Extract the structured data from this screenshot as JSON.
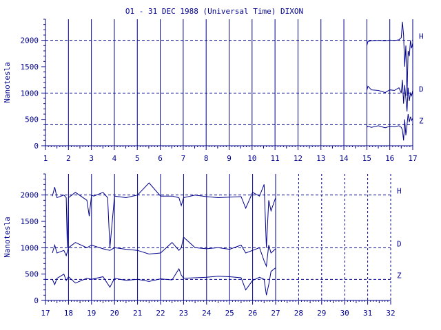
{
  "chart_data": [
    {
      "type": "line",
      "title": "O1 - 31 DEC 1988 (Universal Time) DIXON",
      "ylabel": "Nanotesla",
      "xlabel": "",
      "xlim": [
        1,
        17
      ],
      "ylim": [
        0,
        2400
      ],
      "x_ticks": [
        "1",
        "2",
        "3",
        "4",
        "5",
        "6",
        "7",
        "8",
        "9",
        "10",
        "11",
        "12",
        "13",
        "14",
        "15",
        "16",
        "17"
      ],
      "y_ticks": [
        "0",
        "500",
        "1000",
        "1500",
        "2000"
      ],
      "y_tick_values": [
        0,
        500,
        1000,
        1500,
        2000
      ],
      "data_start_day": 15,
      "grid": true,
      "reference_lines": [
        {
          "label": "H",
          "value": 2000
        },
        {
          "label": "D",
          "value": 1000
        },
        {
          "label": "Z",
          "value": 400
        }
      ],
      "series": [
        {
          "name": "H",
          "x": [
            15.0,
            15.05,
            15.2,
            15.5,
            15.8,
            16.0,
            16.2,
            16.4,
            16.5,
            16.55,
            16.6,
            16.65,
            16.7,
            16.75,
            16.8,
            16.85,
            16.9,
            16.95,
            17.0
          ],
          "values": [
            1900,
            1980,
            1990,
            2000,
            1990,
            2005,
            1995,
            2010,
            2050,
            2350,
            2100,
            1500,
            1900,
            950,
            1800,
            1700,
            2000,
            1850,
            1950
          ]
        },
        {
          "name": "D",
          "x": [
            15.0,
            15.05,
            15.2,
            15.5,
            15.8,
            16.0,
            16.2,
            16.4,
            16.5,
            16.55,
            16.6,
            16.65,
            16.7,
            16.75,
            16.8,
            16.85,
            16.9,
            16.95,
            17.0
          ],
          "values": [
            1050,
            1130,
            1060,
            1050,
            1010,
            1060,
            1050,
            1100,
            1000,
            1250,
            800,
            1150,
            900,
            650,
            1100,
            850,
            1000,
            950,
            1050
          ]
        },
        {
          "name": "Z",
          "x": [
            15.0,
            15.05,
            15.2,
            15.5,
            15.8,
            16.0,
            16.2,
            16.4,
            16.5,
            16.55,
            16.6,
            16.65,
            16.7,
            16.75,
            16.8,
            16.85,
            16.9,
            16.95,
            17.0
          ],
          "values": [
            350,
            370,
            350,
            380,
            340,
            370,
            360,
            380,
            350,
            300,
            100,
            500,
            200,
            400,
            600,
            450,
            550,
            480,
            520
          ]
        }
      ]
    },
    {
      "type": "line",
      "title": "",
      "ylabel": "Nanotesla",
      "xlabel": "",
      "xlim": [
        17,
        32
      ],
      "ylim": [
        0,
        2400
      ],
      "x_ticks": [
        "17",
        "18",
        "19",
        "20",
        "21",
        "22",
        "23",
        "24",
        "25",
        "26",
        "27",
        "28",
        "29",
        "30",
        "31",
        "32"
      ],
      "y_ticks": [
        "0",
        "500",
        "1000",
        "1500",
        "2000"
      ],
      "y_tick_values": [
        0,
        500,
        1000,
        1500,
        2000
      ],
      "data_end_day": 27,
      "grid": true,
      "reference_lines": [
        {
          "label": "H",
          "value": 2000
        },
        {
          "label": "D",
          "value": 1000
        },
        {
          "label": "Z",
          "value": 400
        }
      ],
      "series": [
        {
          "name": "H",
          "x": [
            17.3,
            17.4,
            17.5,
            17.8,
            17.9,
            17.95,
            18.0,
            18.3,
            18.8,
            18.9,
            19.0,
            19.1,
            19.5,
            19.7,
            19.8,
            20.0,
            20.5,
            21.0,
            21.5,
            22.0,
            22.5,
            22.8,
            22.9,
            23.0,
            23.5,
            24.0,
            24.5,
            25.0,
            25.5,
            25.7,
            26.0,
            26.3,
            26.5,
            26.6,
            26.7,
            26.8,
            27.0
          ],
          "values": [
            1980,
            2150,
            1950,
            2000,
            1950,
            1000,
            1950,
            2050,
            1900,
            1600,
            2000,
            1980,
            2050,
            1950,
            1000,
            1980,
            1950,
            2000,
            2230,
            1980,
            1980,
            1950,
            1800,
            1950,
            2000,
            1970,
            1950,
            1960,
            1970,
            1750,
            2050,
            1980,
            2200,
            1000,
            1900,
            1700,
            1950
          ]
        },
        {
          "name": "D",
          "x": [
            17.3,
            17.4,
            17.5,
            17.8,
            17.9,
            18.0,
            18.3,
            18.8,
            19.0,
            19.5,
            19.8,
            20.0,
            20.5,
            21.0,
            21.5,
            22.0,
            22.5,
            22.8,
            22.9,
            23.0,
            23.5,
            24.0,
            24.5,
            25.0,
            25.5,
            25.7,
            26.0,
            26.3,
            26.5,
            26.6,
            26.7,
            26.8,
            27.0
          ],
          "values": [
            900,
            1050,
            900,
            950,
            850,
            1000,
            1100,
            1000,
            1050,
            980,
            950,
            1000,
            970,
            950,
            880,
            900,
            1100,
            950,
            1000,
            1200,
            1000,
            980,
            1000,
            970,
            1050,
            900,
            950,
            1000,
            750,
            650,
            1050,
            900,
            980
          ]
        },
        {
          "name": "Z",
          "x": [
            17.3,
            17.4,
            17.5,
            17.8,
            17.9,
            18.0,
            18.3,
            18.8,
            19.0,
            19.5,
            19.8,
            20.0,
            20.5,
            21.0,
            21.5,
            22.0,
            22.5,
            22.8,
            22.9,
            23.0,
            23.5,
            24.0,
            24.5,
            25.0,
            25.5,
            25.7,
            26.0,
            26.3,
            26.5,
            26.6,
            26.7,
            26.8,
            27.0
          ],
          "values": [
            400,
            300,
            420,
            500,
            380,
            450,
            330,
            420,
            400,
            450,
            250,
            420,
            380,
            400,
            360,
            410,
            390,
            600,
            480,
            420,
            430,
            440,
            460,
            450,
            430,
            200,
            380,
            440,
            400,
            100,
            300,
            550,
            620
          ]
        }
      ]
    }
  ]
}
